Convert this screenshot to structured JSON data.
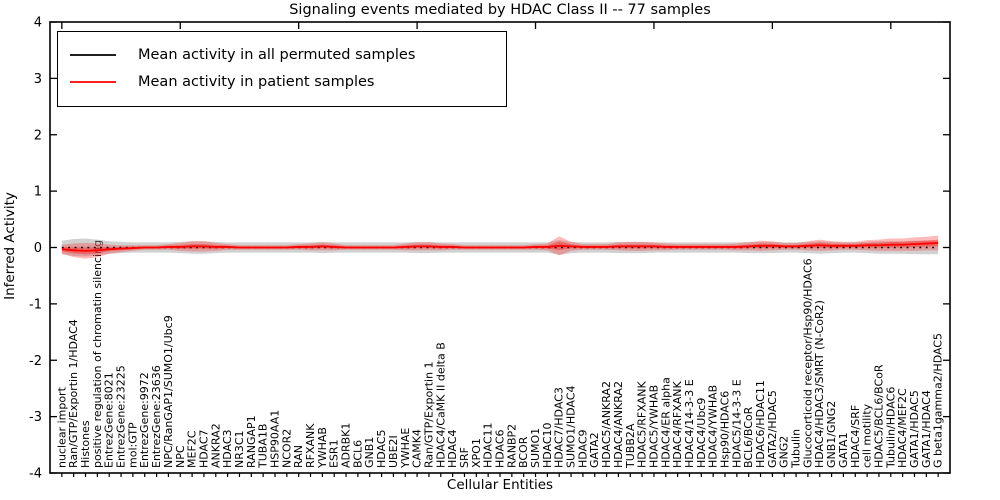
{
  "chart_data": {
    "type": "line",
    "title": "Signaling events mediated by HDAC Class II -- 77 samples",
    "xlabel": "Cellular Entities",
    "ylabel": "Inferred Activity",
    "ylim": [
      -4,
      4
    ],
    "xlim": [
      -1,
      75
    ],
    "yticks": [
      -4,
      -3,
      -2,
      -1,
      0,
      1,
      2,
      3,
      4
    ],
    "grid": false,
    "legend_position": "upper left",
    "legend": [
      {
        "label": "Mean activity in all permuted samples",
        "color": "#000000"
      },
      {
        "label": "Mean activity in patient samples",
        "color": "#ff0000"
      }
    ],
    "categories": [
      "nuclear import",
      "Ran/GTP/Exportin 1/HDAC4",
      "Histones",
      "positive regulation of chromatin silencing",
      "EntrezGene:8021",
      "EntrezGene:23225",
      "mol:GTP",
      "EntrezGene:9972",
      "EntrezGene:23636",
      "NPC/RanGAP1/SUMO1/Ubc9",
      "NPC",
      "MEF2C",
      "HDAC7",
      "ANKRA2",
      "HDAC3",
      "NR3C1",
      "RANGAP1",
      "TUBA1B",
      "HSP90AA1",
      "NCOR2",
      "RAN",
      "RFXANK",
      "YWHAB",
      "ESR1",
      "ADRBK1",
      "BCL6",
      "GNB1",
      "HDAC5",
      "UBE2I",
      "YWHAE",
      "CAMK4",
      "Ran/GTP/Exportin 1",
      "HDAC4/CaMK II delta B",
      "HDAC4",
      "SRF",
      "XPO1",
      "HDAC11",
      "HDAC6",
      "RANBP2",
      "BCOR",
      "SUMO1",
      "HDAC10",
      "HDAC7/HDAC3",
      "SUMO1/HDAC4",
      "HDAC9",
      "GATA2",
      "HDAC5/ANKRA2",
      "HDAC4/ANKRA2",
      "TUBB2A",
      "HDAC5/RFXANK",
      "HDAC5/YWHAB",
      "HDAC4/ER alpha",
      "HDAC4/RFXANK",
      "HDAC4/14-3-3 E",
      "HDAC4/Ubc9",
      "HDAC4/YWHAB",
      "Hsp90/HDAC6",
      "HDAC5/14-3-3 E",
      "BCL6/BCoR",
      "HDAC6/HDAC11",
      "GATA2/HDAC5",
      "GNG2",
      "Tubulin",
      "Glucocorticoid receptor/Hsp90/HDAC6",
      "HDAC4/HDAC3/SMRT (N-CoR2)",
      "GNB1/GNG2",
      "GATA1",
      "HDAC4/SRF",
      "cell motility",
      "HDAC5/BCL6/BCoR",
      "Tubulin/HDAC6",
      "HDAC4/MEF2C",
      "GATA1/HDAC5",
      "GATA1/HDAC4",
      "G beta1gamma2/HDAC5"
    ],
    "series": [
      {
        "name": "Mean activity in all permuted samples",
        "color": "#000000",
        "style": "dotted",
        "values": [
          0,
          0,
          0,
          0,
          0,
          0,
          0,
          0,
          0,
          0,
          0,
          0,
          0,
          0,
          0,
          0,
          0,
          0,
          0,
          0,
          0,
          0,
          0,
          0,
          0,
          0,
          0,
          0,
          0,
          0,
          0,
          0,
          0,
          0,
          0,
          0,
          0,
          0,
          0,
          0,
          0,
          0,
          0,
          0,
          0,
          0,
          0,
          0,
          0,
          0,
          0,
          0,
          0,
          0,
          0,
          0,
          0,
          0,
          0,
          0,
          0,
          0,
          0,
          0,
          0,
          0,
          0,
          0,
          0,
          0,
          0,
          0,
          0,
          0,
          0
        ],
        "spread": [
          0.12,
          0.15,
          0.16,
          0.14,
          0.11,
          0.1,
          0.09,
          0.09,
          0.09,
          0.09,
          0.1,
          0.11,
          0.11,
          0.1,
          0.09,
          0.09,
          0.09,
          0.09,
          0.09,
          0.09,
          0.09,
          0.09,
          0.1,
          0.09,
          0.09,
          0.09,
          0.09,
          0.09,
          0.09,
          0.09,
          0.1,
          0.1,
          0.09,
          0.09,
          0.09,
          0.09,
          0.09,
          0.09,
          0.09,
          0.09,
          0.09,
          0.09,
          0.13,
          0.1,
          0.09,
          0.09,
          0.09,
          0.1,
          0.1,
          0.1,
          0.09,
          0.09,
          0.09,
          0.09,
          0.09,
          0.09,
          0.09,
          0.09,
          0.1,
          0.1,
          0.1,
          0.09,
          0.09,
          0.1,
          0.11,
          0.1,
          0.09,
          0.09,
          0.1,
          0.11,
          0.11,
          0.11,
          0.12,
          0.12,
          0.12
        ]
      },
      {
        "name": "Mean activity in patient samples",
        "color": "#ff0000",
        "style": "solid",
        "values": [
          -0.03,
          -0.05,
          -0.06,
          -0.05,
          -0.03,
          -0.02,
          -0.01,
          0,
          0,
          0.01,
          0.01,
          0.02,
          0.02,
          0.01,
          0.01,
          0,
          0,
          0,
          0,
          0,
          0.01,
          0.01,
          0.02,
          0.01,
          0,
          0,
          0,
          0,
          0,
          0.01,
          0.02,
          0.02,
          0.01,
          0.01,
          0,
          0,
          0,
          0,
          0,
          0,
          0.01,
          0.01,
          0.03,
          0.02,
          0.01,
          0.01,
          0.01,
          0.02,
          0.02,
          0.02,
          0.02,
          0.01,
          0.01,
          0.01,
          0.01,
          0.01,
          0.01,
          0.01,
          0.02,
          0.03,
          0.03,
          0.02,
          0.02,
          0.03,
          0.04,
          0.03,
          0.03,
          0.03,
          0.04,
          0.04,
          0.05,
          0.05,
          0.06,
          0.07,
          0.08
        ],
        "spread": [
          0.08,
          0.12,
          0.14,
          0.12,
          0.08,
          0.06,
          0.05,
          0.04,
          0.04,
          0.05,
          0.07,
          0.09,
          0.09,
          0.07,
          0.05,
          0.04,
          0.04,
          0.04,
          0.04,
          0.04,
          0.05,
          0.06,
          0.07,
          0.06,
          0.04,
          0.04,
          0.04,
          0.04,
          0.04,
          0.06,
          0.07,
          0.07,
          0.06,
          0.05,
          0.04,
          0.04,
          0.04,
          0.04,
          0.04,
          0.04,
          0.05,
          0.06,
          0.17,
          0.08,
          0.05,
          0.05,
          0.05,
          0.07,
          0.08,
          0.08,
          0.07,
          0.06,
          0.05,
          0.05,
          0.05,
          0.05,
          0.05,
          0.06,
          0.07,
          0.09,
          0.08,
          0.06,
          0.06,
          0.08,
          0.1,
          0.08,
          0.07,
          0.07,
          0.09,
          0.1,
          0.11,
          0.11,
          0.12,
          0.12,
          0.13
        ]
      }
    ]
  }
}
